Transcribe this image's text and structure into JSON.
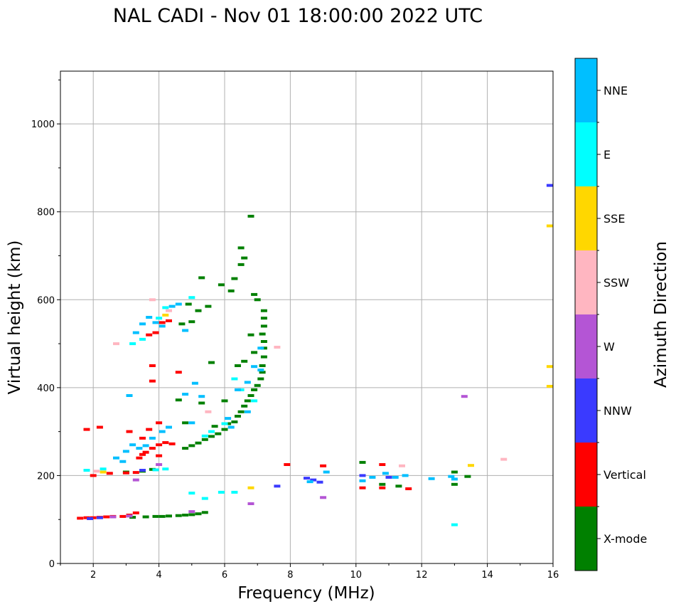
{
  "chart_data": {
    "type": "scatter",
    "title": "NAL CADI - Nov 01 18:00:00 2022 UTC",
    "xlabel": "Frequency (MHz)",
    "ylabel": "Virtual height (km)",
    "xlim": [
      1,
      16
    ],
    "ylim": [
      0,
      1120
    ],
    "xticks": [
      2,
      4,
      6,
      8,
      10,
      12,
      14,
      16
    ],
    "yticks": [
      0,
      200,
      400,
      600,
      800,
      1000
    ],
    "grid": true,
    "colorbar": {
      "title": "Azimuth Direction",
      "categories": [
        "X-mode",
        "Vertical",
        "NNW",
        "W",
        "SSW",
        "SSE",
        "E",
        "NNE"
      ],
      "colors": [
        "#008000",
        "#ff0000",
        "#3a3aff",
        "#b455d5",
        "#ffb6c1",
        "#ffd700",
        "#00ffff",
        "#00bfff"
      ]
    },
    "series": [
      {
        "name": "X-mode",
        "points": [
          [
            3.2,
            105
          ],
          [
            3.6,
            106
          ],
          [
            3.9,
            107
          ],
          [
            4.1,
            107
          ],
          [
            4.3,
            108
          ],
          [
            4.6,
            109
          ],
          [
            4.8,
            110
          ],
          [
            5.0,
            111
          ],
          [
            5.2,
            113
          ],
          [
            5.4,
            116
          ],
          [
            3.0,
            208
          ],
          [
            3.5,
            210
          ],
          [
            3.8,
            214
          ],
          [
            4.8,
            262
          ],
          [
            5.0,
            268
          ],
          [
            5.2,
            274
          ],
          [
            5.4,
            282
          ],
          [
            5.6,
            289
          ],
          [
            5.8,
            295
          ],
          [
            6.0,
            305
          ],
          [
            6.1,
            318
          ],
          [
            6.3,
            322
          ],
          [
            6.4,
            335
          ],
          [
            6.5,
            345
          ],
          [
            6.6,
            358
          ],
          [
            6.7,
            370
          ],
          [
            6.8,
            382
          ],
          [
            6.9,
            395
          ],
          [
            7.0,
            405
          ],
          [
            7.1,
            420
          ],
          [
            7.15,
            435
          ],
          [
            7.15,
            450
          ],
          [
            7.2,
            470
          ],
          [
            7.2,
            490
          ],
          [
            7.2,
            505
          ],
          [
            7.15,
            522
          ],
          [
            7.2,
            540
          ],
          [
            7.2,
            558
          ],
          [
            7.2,
            575
          ],
          [
            6.8,
            520
          ],
          [
            6.6,
            460
          ],
          [
            6.4,
            450
          ],
          [
            6.9,
            480
          ],
          [
            6.9,
            612
          ],
          [
            7.0,
            600
          ],
          [
            6.3,
            648
          ],
          [
            6.5,
            718
          ],
          [
            6.6,
            695
          ],
          [
            6.5,
            680
          ],
          [
            6.2,
            620
          ],
          [
            5.5,
            585
          ],
          [
            5.0,
            550
          ],
          [
            4.7,
            545
          ],
          [
            4.9,
            590
          ],
          [
            5.2,
            575
          ],
          [
            5.3,
            650
          ],
          [
            5.6,
            457
          ],
          [
            5.3,
            365
          ],
          [
            4.6,
            372
          ],
          [
            4.8,
            320
          ],
          [
            10.2,
            230
          ],
          [
            10.8,
            180
          ],
          [
            11.3,
            176
          ],
          [
            13.0,
            208
          ],
          [
            13.0,
            180
          ],
          [
            13.4,
            198
          ],
          [
            6.8,
            790
          ],
          [
            5.9,
            634
          ],
          [
            5.7,
            312
          ],
          [
            6.0,
            370
          ]
        ]
      },
      {
        "name": "Vertical",
        "points": [
          [
            1.6,
            103
          ],
          [
            1.8,
            104
          ],
          [
            2.0,
            104
          ],
          [
            2.2,
            105
          ],
          [
            2.4,
            106
          ],
          [
            2.6,
            107
          ],
          [
            2.9,
            107
          ],
          [
            3.1,
            110
          ],
          [
            3.3,
            115
          ],
          [
            2.0,
            200
          ],
          [
            2.5,
            205
          ],
          [
            3.0,
            206
          ],
          [
            3.3,
            207
          ],
          [
            3.4,
            240
          ],
          [
            3.5,
            248
          ],
          [
            3.6,
            253
          ],
          [
            3.8,
            262
          ],
          [
            4.0,
            270
          ],
          [
            4.2,
            275
          ],
          [
            4.4,
            272
          ],
          [
            3.1,
            300
          ],
          [
            3.7,
            305
          ],
          [
            4.0,
            320
          ],
          [
            3.5,
            285
          ],
          [
            3.7,
            520
          ],
          [
            3.9,
            525
          ],
          [
            4.1,
            548
          ],
          [
            4.3,
            552
          ],
          [
            3.8,
            450
          ],
          [
            4.0,
            245
          ],
          [
            10.2,
            172
          ],
          [
            10.8,
            172
          ],
          [
            11.6,
            170
          ],
          [
            10.8,
            225
          ],
          [
            9.0,
            222
          ],
          [
            3.8,
            415
          ],
          [
            1.8,
            305
          ],
          [
            2.2,
            310
          ],
          [
            4.6,
            435
          ],
          [
            7.9,
            225
          ]
        ]
      },
      {
        "name": "NNW",
        "points": [
          [
            8.5,
            194
          ],
          [
            8.7,
            190
          ],
          [
            8.9,
            185
          ],
          [
            10.2,
            200
          ],
          [
            11.0,
            196
          ],
          [
            7.6,
            176
          ],
          [
            2.2,
            104
          ],
          [
            1.9,
            102
          ],
          [
            3.5,
            212
          ],
          [
            15.9,
            860
          ]
        ]
      },
      {
        "name": "W",
        "points": [
          [
            3.1,
            108
          ],
          [
            4.0,
            225
          ],
          [
            5.0,
            118
          ],
          [
            6.8,
            136
          ],
          [
            9.0,
            150
          ],
          [
            13.3,
            380
          ],
          [
            3.3,
            190
          ],
          [
            2.6,
            106
          ]
        ]
      },
      {
        "name": "SSW",
        "points": [
          [
            2.7,
            500
          ],
          [
            7.6,
            492
          ],
          [
            4.3,
            575
          ],
          [
            5.5,
            345
          ],
          [
            11.4,
            222
          ],
          [
            14.5,
            237
          ],
          [
            3.8,
            600
          ],
          [
            2.1,
            210
          ]
        ]
      },
      {
        "name": "SSE",
        "points": [
          [
            6.8,
            172
          ],
          [
            4.2,
            565
          ],
          [
            13.5,
            223
          ],
          [
            15.9,
            768
          ],
          [
            15.9,
            448
          ],
          [
            15.9,
            403
          ],
          [
            2.3,
            208
          ]
        ]
      },
      {
        "name": "E",
        "points": [
          [
            3.9,
            213
          ],
          [
            4.2,
            215
          ],
          [
            5.0,
            160
          ],
          [
            5.4,
            148
          ],
          [
            5.9,
            162
          ],
          [
            6.3,
            162
          ],
          [
            5.4,
            290
          ],
          [
            5.6,
            300
          ],
          [
            6.0,
            318
          ],
          [
            13.0,
            88
          ],
          [
            4.0,
            558
          ],
          [
            4.2,
            582
          ],
          [
            5.0,
            605
          ],
          [
            3.2,
            500
          ],
          [
            3.5,
            510
          ],
          [
            6.3,
            420
          ],
          [
            6.5,
            395
          ],
          [
            6.9,
            370
          ],
          [
            1.8,
            212
          ],
          [
            2.3,
            215
          ]
        ]
      },
      {
        "name": "NNE",
        "points": [
          [
            3.2,
            270
          ],
          [
            3.4,
            262
          ],
          [
            3.6,
            268
          ],
          [
            3.8,
            285
          ],
          [
            4.1,
            300
          ],
          [
            4.3,
            310
          ],
          [
            3.0,
            255
          ],
          [
            2.7,
            240
          ],
          [
            2.9,
            232
          ],
          [
            3.3,
            525
          ],
          [
            3.5,
            545
          ],
          [
            3.7,
            560
          ],
          [
            3.9,
            548
          ],
          [
            4.1,
            540
          ],
          [
            4.4,
            585
          ],
          [
            4.8,
            530
          ],
          [
            5.0,
            320
          ],
          [
            4.6,
            590
          ],
          [
            6.7,
            345
          ],
          [
            6.9,
            448
          ],
          [
            7.1,
            490
          ],
          [
            7.1,
            440
          ],
          [
            6.7,
            412
          ],
          [
            6.4,
            395
          ],
          [
            6.1,
            330
          ],
          [
            6.2,
            310
          ],
          [
            9.1,
            208
          ],
          [
            10.2,
            188
          ],
          [
            10.5,
            196
          ],
          [
            10.9,
            205
          ],
          [
            11.2,
            196
          ],
          [
            11.5,
            200
          ],
          [
            12.3,
            193
          ],
          [
            12.9,
            198
          ],
          [
            13.0,
            192
          ],
          [
            8.6,
            186
          ],
          [
            3.1,
            382
          ],
          [
            5.1,
            410
          ],
          [
            4.8,
            385
          ],
          [
            5.3,
            380
          ]
        ]
      }
    ]
  }
}
